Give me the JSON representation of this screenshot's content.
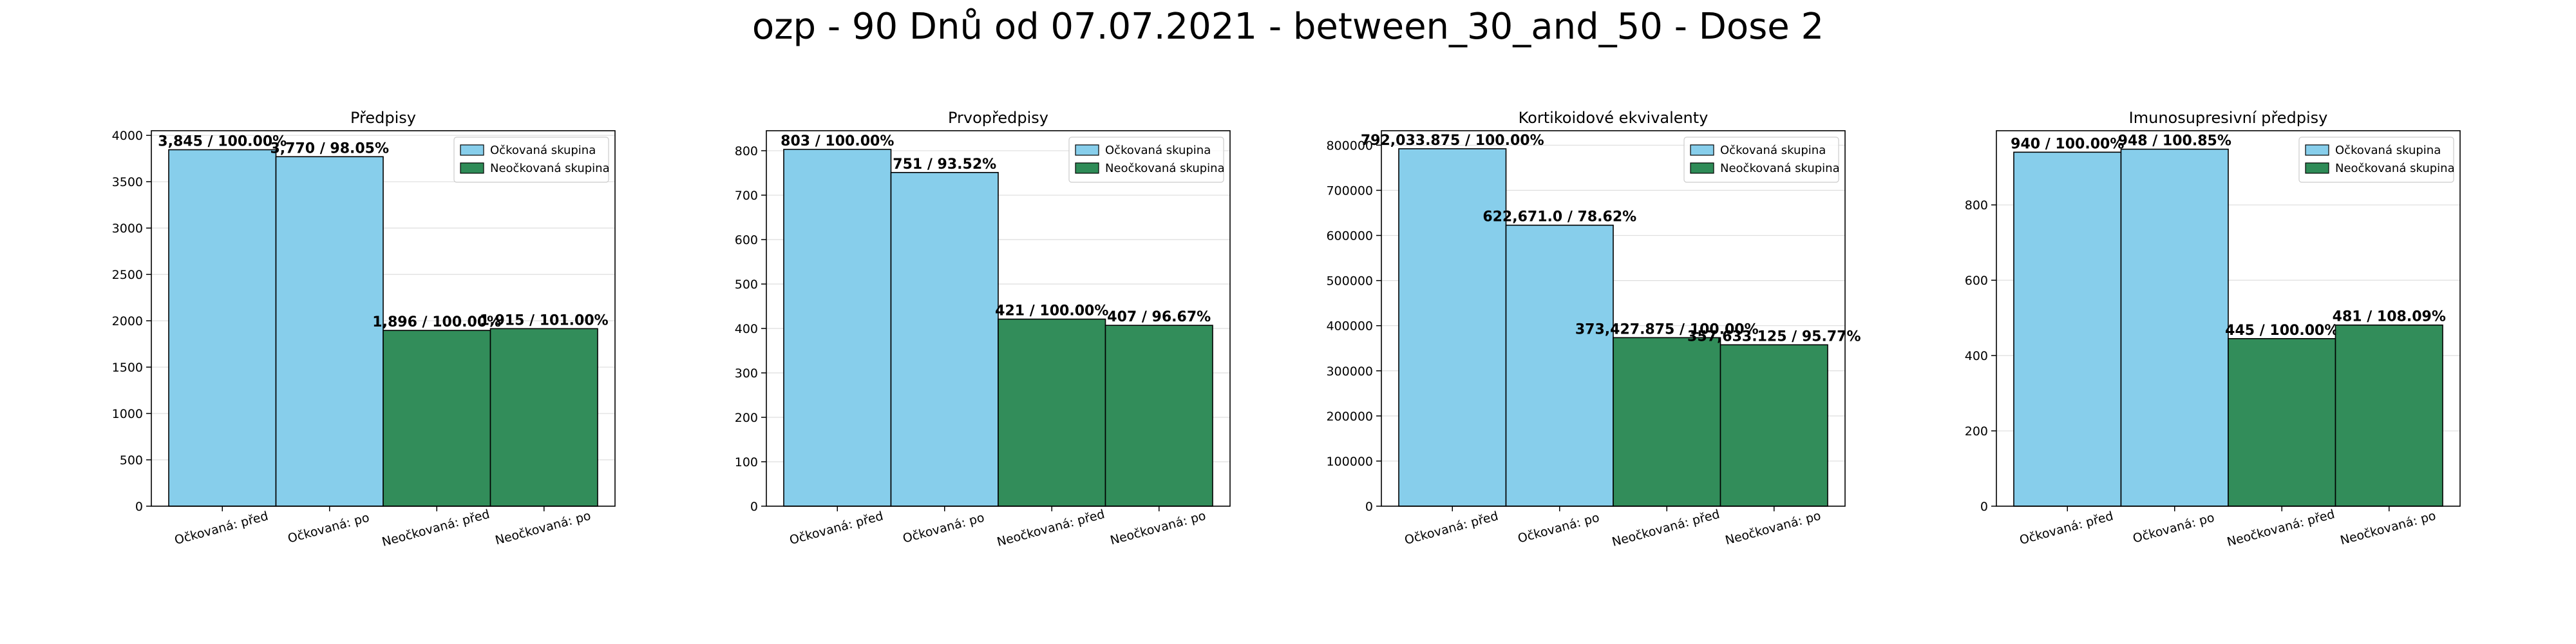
{
  "figure": {
    "suptitle": "ozp - 90 Dnů od 07.07.2021 - between_30_and_50 - Dose 2"
  },
  "colors": {
    "vaccinated": "#87CEEB",
    "unvaccinated": "#2E8B57",
    "bar_edge": "#000000",
    "grid": "#dddddd",
    "axes_edge": "#000000"
  },
  "legend": {
    "placement": "upper right",
    "entries": [
      "Očkovaná skupina",
      "Neočkovaná skupina"
    ]
  },
  "chart_data": [
    {
      "type": "bar",
      "title": "Předpisy",
      "categories": [
        "Očkovaná: před",
        "Očkovaná: po",
        "Neočkovaná: před",
        "Neočkovaná: po"
      ],
      "values": [
        3845,
        3770,
        1896,
        1915
      ],
      "bar_labels": [
        "3,845 / 100.00%",
        "3,770 / 98.05%",
        "1,896 / 100.00%",
        "1,915 / 101.00%"
      ],
      "groups": [
        "vaccinated",
        "vaccinated",
        "unvaccinated",
        "unvaccinated"
      ],
      "ylim": [
        0,
        4050
      ],
      "yticks": [
        0,
        500,
        1000,
        1500,
        2000,
        2500,
        3000,
        3500,
        4000
      ],
      "ytick_labels": [
        "0",
        "500",
        "1000",
        "1500",
        "2000",
        "2500",
        "3000",
        "3500",
        "4000"
      ],
      "grid": "y",
      "legend": "upper right"
    },
    {
      "type": "bar",
      "title": "Prvopředpisy",
      "categories": [
        "Očkovaná: před",
        "Očkovaná: po",
        "Neočkovaná: před",
        "Neočkovaná: po"
      ],
      "values": [
        803,
        751,
        421,
        407
      ],
      "bar_labels": [
        "803 / 100.00%",
        "751 / 93.52%",
        "421 / 100.00%",
        "407 / 96.67%"
      ],
      "groups": [
        "vaccinated",
        "vaccinated",
        "unvaccinated",
        "unvaccinated"
      ],
      "ylim": [
        0,
        845
      ],
      "yticks": [
        0,
        100,
        200,
        300,
        400,
        500,
        600,
        700,
        800
      ],
      "ytick_labels": [
        "0",
        "100",
        "200",
        "300",
        "400",
        "500",
        "600",
        "700",
        "800"
      ],
      "grid": "y",
      "legend": "upper right"
    },
    {
      "type": "bar",
      "title": "Kortikoidové ekvivalenty",
      "categories": [
        "Očkovaná: před",
        "Očkovaná: po",
        "Neočkovaná: před",
        "Neočkovaná: po"
      ],
      "values": [
        792033.875,
        622671.0,
        373427.875,
        357633.125
      ],
      "bar_labels": [
        "792,033.875 / 100.00%",
        "622,671.0 / 78.62%",
        "373,427.875 / 100.00%",
        "357,633.125 / 95.77%"
      ],
      "groups": [
        "vaccinated",
        "vaccinated",
        "unvaccinated",
        "unvaccinated"
      ],
      "ylim": [
        0,
        832000
      ],
      "yticks": [
        0,
        100000,
        200000,
        300000,
        400000,
        500000,
        600000,
        700000,
        800000
      ],
      "ytick_labels": [
        "0",
        "100000",
        "200000",
        "300000",
        "400000",
        "500000",
        "600000",
        "700000",
        "800000"
      ],
      "grid": "y",
      "legend": "upper right"
    },
    {
      "type": "bar",
      "title": "Imunosupresivní předpisy",
      "categories": [
        "Očkovaná: před",
        "Očkovaná: po",
        "Neočkovaná: před",
        "Neočkovaná: po"
      ],
      "values": [
        940,
        948,
        445,
        481
      ],
      "bar_labels": [
        "940 / 100.00%",
        "948 / 100.85%",
        "445 / 100.00%",
        "481 / 108.09%"
      ],
      "groups": [
        "vaccinated",
        "vaccinated",
        "unvaccinated",
        "unvaccinated"
      ],
      "ylim": [
        0,
        997
      ],
      "yticks": [
        0,
        200,
        400,
        600,
        800
      ],
      "ytick_labels": [
        "0",
        "200",
        "400",
        "600",
        "800"
      ],
      "grid": "y",
      "legend": "upper right"
    }
  ]
}
